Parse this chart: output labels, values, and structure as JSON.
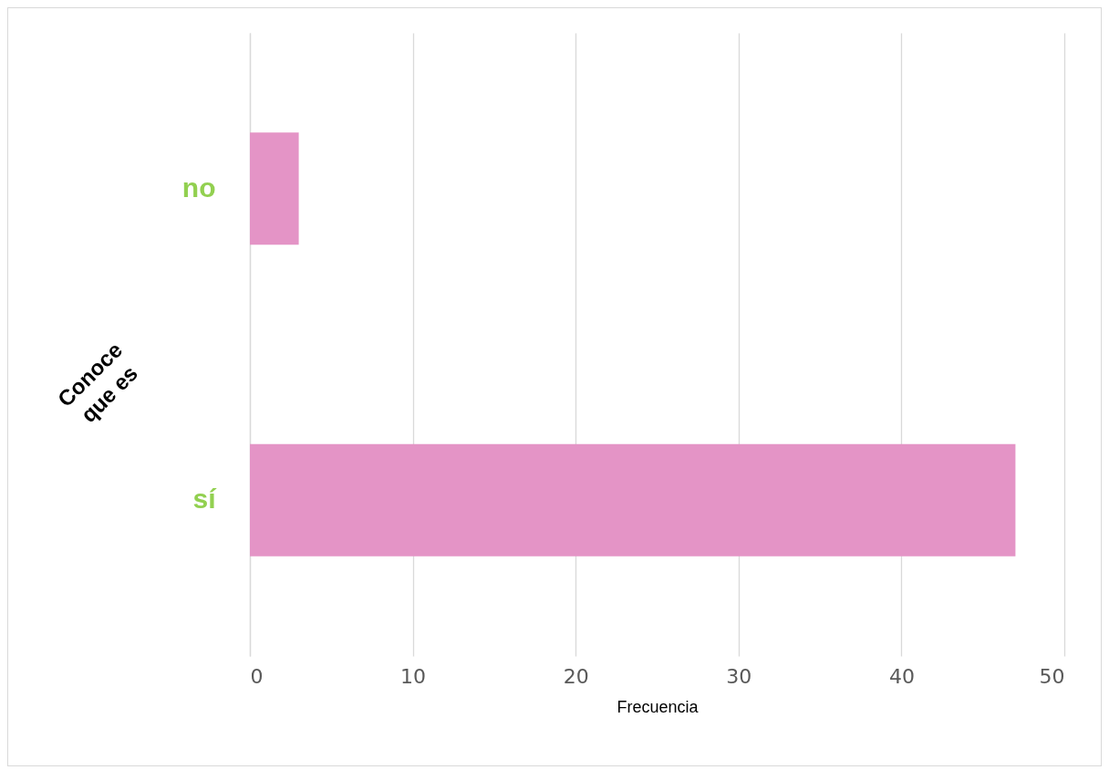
{
  "chart_data": {
    "type": "bar",
    "orientation": "horizontal",
    "xlabel": "Frecuencia",
    "ylabel": "Conoce que es",
    "categories": [
      "no",
      "sí"
    ],
    "values": [
      3,
      47
    ],
    "color": "#e494c6",
    "xlim": [
      0,
      50
    ],
    "xticks": [
      0,
      10,
      20,
      30,
      40,
      50
    ],
    "grid": "x"
  }
}
